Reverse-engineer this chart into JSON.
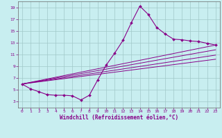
{
  "xlabel": "Windchill (Refroidissement éolien,°C)",
  "bg_color": "#c8eef0",
  "line_color": "#880088",
  "grid_color": "#a0c8c8",
  "xlim": [
    -0.5,
    23.5
  ],
  "ylim": [
    2.0,
    20.0
  ],
  "xticks": [
    0,
    1,
    2,
    3,
    4,
    5,
    6,
    7,
    8,
    9,
    10,
    11,
    12,
    13,
    14,
    15,
    16,
    17,
    18,
    19,
    20,
    21,
    22,
    23
  ],
  "yticks": [
    3,
    5,
    7,
    9,
    11,
    13,
    15,
    17,
    19
  ],
  "main_x": [
    0,
    1,
    2,
    3,
    4,
    5,
    6,
    7,
    8,
    9,
    10,
    11,
    12,
    13,
    14,
    15,
    16,
    17,
    18,
    19,
    20,
    21,
    22,
    23
  ],
  "main_y": [
    6.0,
    5.2,
    4.7,
    4.2,
    4.1,
    4.1,
    4.0,
    3.3,
    4.1,
    6.7,
    9.2,
    11.2,
    13.4,
    16.4,
    19.2,
    17.8,
    15.6,
    14.5,
    13.6,
    13.5,
    13.3,
    13.2,
    12.9,
    12.6
  ],
  "line1_x": [
    0,
    23
  ],
  "line1_y": [
    6.0,
    12.6
  ],
  "line2_x": [
    0,
    23
  ],
  "line2_y": [
    6.0,
    11.8
  ],
  "line3_x": [
    0,
    23
  ],
  "line3_y": [
    6.0,
    10.9
  ],
  "line4_x": [
    0,
    23
  ],
  "line4_y": [
    6.0,
    10.2
  ]
}
